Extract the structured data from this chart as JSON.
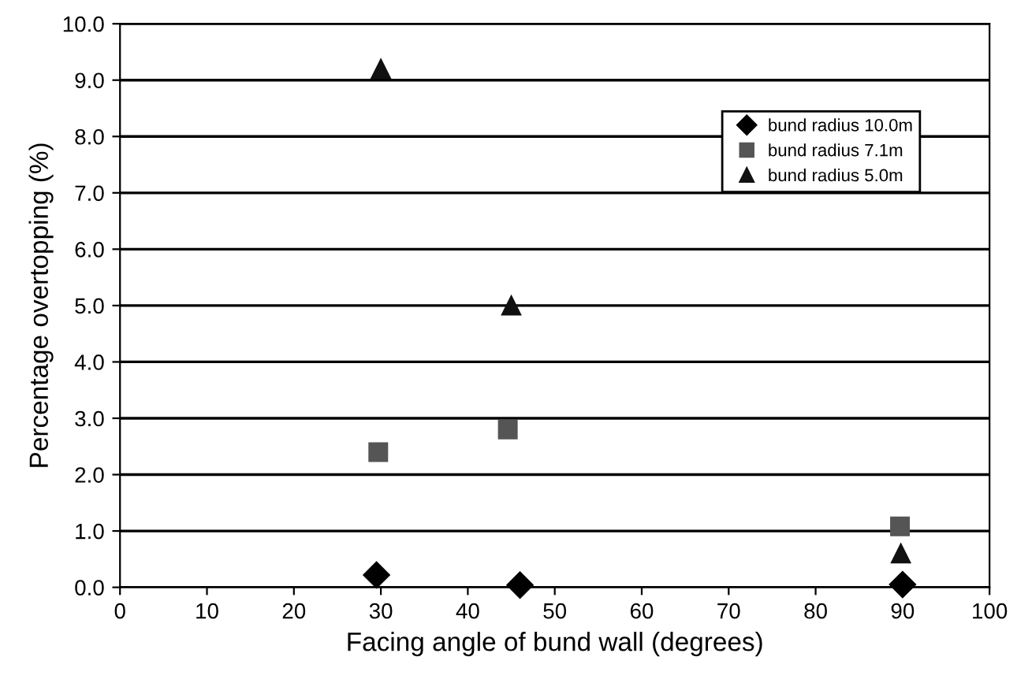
{
  "chart_data": {
    "type": "scatter",
    "xlabel": "Facing angle of bund wall (degrees)",
    "ylabel": "Percentage overtopping (%)",
    "xlim": [
      0,
      100
    ],
    "xticks": [
      0,
      10,
      20,
      30,
      40,
      50,
      60,
      70,
      80,
      90,
      100
    ],
    "ylim": [
      0,
      10
    ],
    "yticks": [
      {
        "value": 0,
        "label": "0.0"
      },
      {
        "value": 1,
        "label": "1.0"
      },
      {
        "value": 2,
        "label": "2.0"
      },
      {
        "value": 3,
        "label": "3.0"
      },
      {
        "value": 4,
        "label": "4.0"
      },
      {
        "value": 5,
        "label": "5.0"
      },
      {
        "value": 6,
        "label": "6.0"
      },
      {
        "value": 7,
        "label": "7.0"
      },
      {
        "value": 8,
        "label": "8.0"
      },
      {
        "value": 9,
        "label": "9.0"
      },
      {
        "value": 10,
        "label": "10.0"
      }
    ],
    "grid": "y",
    "legend": "top right",
    "series": [
      {
        "name": "bund radius 10.0m",
        "color": "#000000",
        "marker": "diamond",
        "x": [
          29.5,
          46,
          90
        ],
        "values": [
          0.22,
          0.04,
          0.05
        ]
      },
      {
        "name": "bund radius 7.1m",
        "color": "#555555",
        "marker": "square",
        "x": [
          29.7,
          44.6,
          89.7
        ],
        "values": [
          2.4,
          2.8,
          1.08
        ]
      },
      {
        "name": "bund radius 5.0m",
        "color": "#111111",
        "marker": "triangle",
        "x": [
          30,
          45,
          89.8
        ],
        "values": [
          9.2,
          5.0,
          0.6
        ]
      }
    ]
  }
}
